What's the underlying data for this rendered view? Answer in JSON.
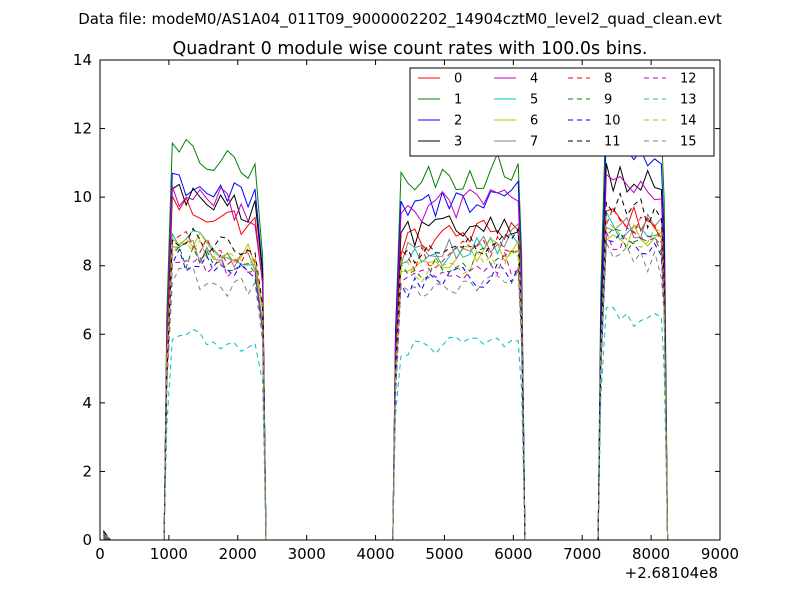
{
  "chart_data": {
    "type": "line",
    "suptitle": "Data file: modeM0/AS1A04_011T09_9000002202_14904cztM0_level2_quad_clean.evt",
    "title": "Quadrant 0 module wise count rates with 100.0s bins.",
    "xlabel": "",
    "ylabel": "",
    "offset_label": "+2.68104e8",
    "xlim": [
      0,
      9000
    ],
    "ylim": [
      0,
      14
    ],
    "xticks": [
      "0",
      "1000",
      "2000",
      "3000",
      "4000",
      "5000",
      "6000",
      "7000",
      "8000",
      "9000"
    ],
    "yticks": [
      "0",
      "2",
      "4",
      "6",
      "8",
      "10",
      "12",
      "14"
    ],
    "grid": false,
    "legend_placement": "top-right",
    "segments": [
      [
        930,
        2370
      ],
      [
        4250,
        6130
      ],
      [
        7230,
        8200
      ]
    ],
    "series": [
      {
        "name": "0",
        "color": "#ff0000",
        "dash": false,
        "levels": [
          9.5,
          8.9,
          9.4
        ]
      },
      {
        "name": "1",
        "color": "#008000",
        "dash": false,
        "levels": [
          11.0,
          10.6,
          12.6
        ]
      },
      {
        "name": "2",
        "color": "#0000ff",
        "dash": false,
        "levels": [
          10.2,
          9.9,
          11.4
        ]
      },
      {
        "name": "3",
        "color": "#000000",
        "dash": false,
        "levels": [
          9.8,
          9.1,
          10.5
        ]
      },
      {
        "name": "4",
        "color": "#bf00bf",
        "dash": false,
        "levels": [
          9.9,
          9.8,
          10.1
        ]
      },
      {
        "name": "5",
        "color": "#00bfbf",
        "dash": false,
        "levels": [
          8.6,
          8.4,
          9.0
        ]
      },
      {
        "name": "6",
        "color": "#bfbf00",
        "dash": false,
        "levels": [
          8.5,
          8.3,
          8.9
        ]
      },
      {
        "name": "7",
        "color": "#808080",
        "dash": false,
        "levels": [
          8.3,
          8.6,
          9.2
        ]
      },
      {
        "name": "8",
        "color": "#ff0000",
        "dash": true,
        "levels": [
          8.5,
          8.4,
          9.2
        ]
      },
      {
        "name": "9",
        "color": "#008000",
        "dash": true,
        "levels": [
          8.1,
          8.1,
          8.8
        ]
      },
      {
        "name": "10",
        "color": "#0000ff",
        "dash": true,
        "levels": [
          7.9,
          7.6,
          8.6
        ]
      },
      {
        "name": "11",
        "color": "#000000",
        "dash": true,
        "levels": [
          8.6,
          8.5,
          9.6
        ]
      },
      {
        "name": "12",
        "color": "#bf00bf",
        "dash": true,
        "levels": [
          8.0,
          7.9,
          8.7
        ]
      },
      {
        "name": "13",
        "color": "#00bfbf",
        "dash": true,
        "levels": [
          5.8,
          5.7,
          6.5
        ]
      },
      {
        "name": "14",
        "color": "#bfbf00",
        "dash": true,
        "levels": [
          8.3,
          8.0,
          8.9
        ]
      },
      {
        "name": "15",
        "color": "#808080",
        "dash": true,
        "levels": [
          7.5,
          7.4,
          8.2
        ]
      }
    ]
  }
}
